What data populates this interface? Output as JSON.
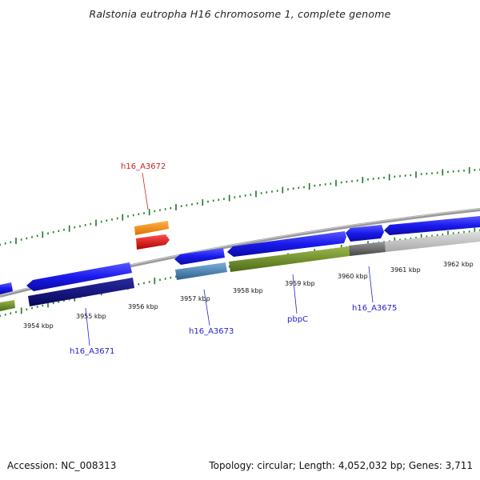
{
  "title": "Ralstonia eutropha H16 chromosome 1, complete genome",
  "footer": {
    "accession": "Accession: NC_008313",
    "summary": "Topology: circular; Length: 4,052,032 bp; Genes: 3,711"
  },
  "colors": {
    "backbone": "#888888",
    "tick": "#1a7a1a",
    "label_blue": "#2222cc",
    "label_red": "#cc2222",
    "gene_blue": "#1a1aee",
    "gene_navy": "#0a0a7a",
    "gene_olive": "#6b8e23",
    "gene_steel": "#4682b4",
    "gene_gray": "#666666",
    "gene_lightgray": "#bbbbbb",
    "gene_orange": "#ff8c00",
    "gene_red": "#ee0000"
  },
  "tick_labels": [
    "3954 kbp",
    "3955 kbp",
    "3956 kbp",
    "3957 kbp",
    "3958 kbp",
    "3959 kbp",
    "3960 kbp",
    "3961 kbp",
    "3962 kbp"
  ],
  "gene_labels": [
    {
      "name": "h16_A3672",
      "color": "red"
    },
    {
      "name": "h16_A3671",
      "color": "blue"
    },
    {
      "name": "h16_A3673",
      "color": "blue"
    },
    {
      "name": "pbpC",
      "color": "blue"
    },
    {
      "name": "h16_A3675",
      "color": "blue"
    }
  ]
}
